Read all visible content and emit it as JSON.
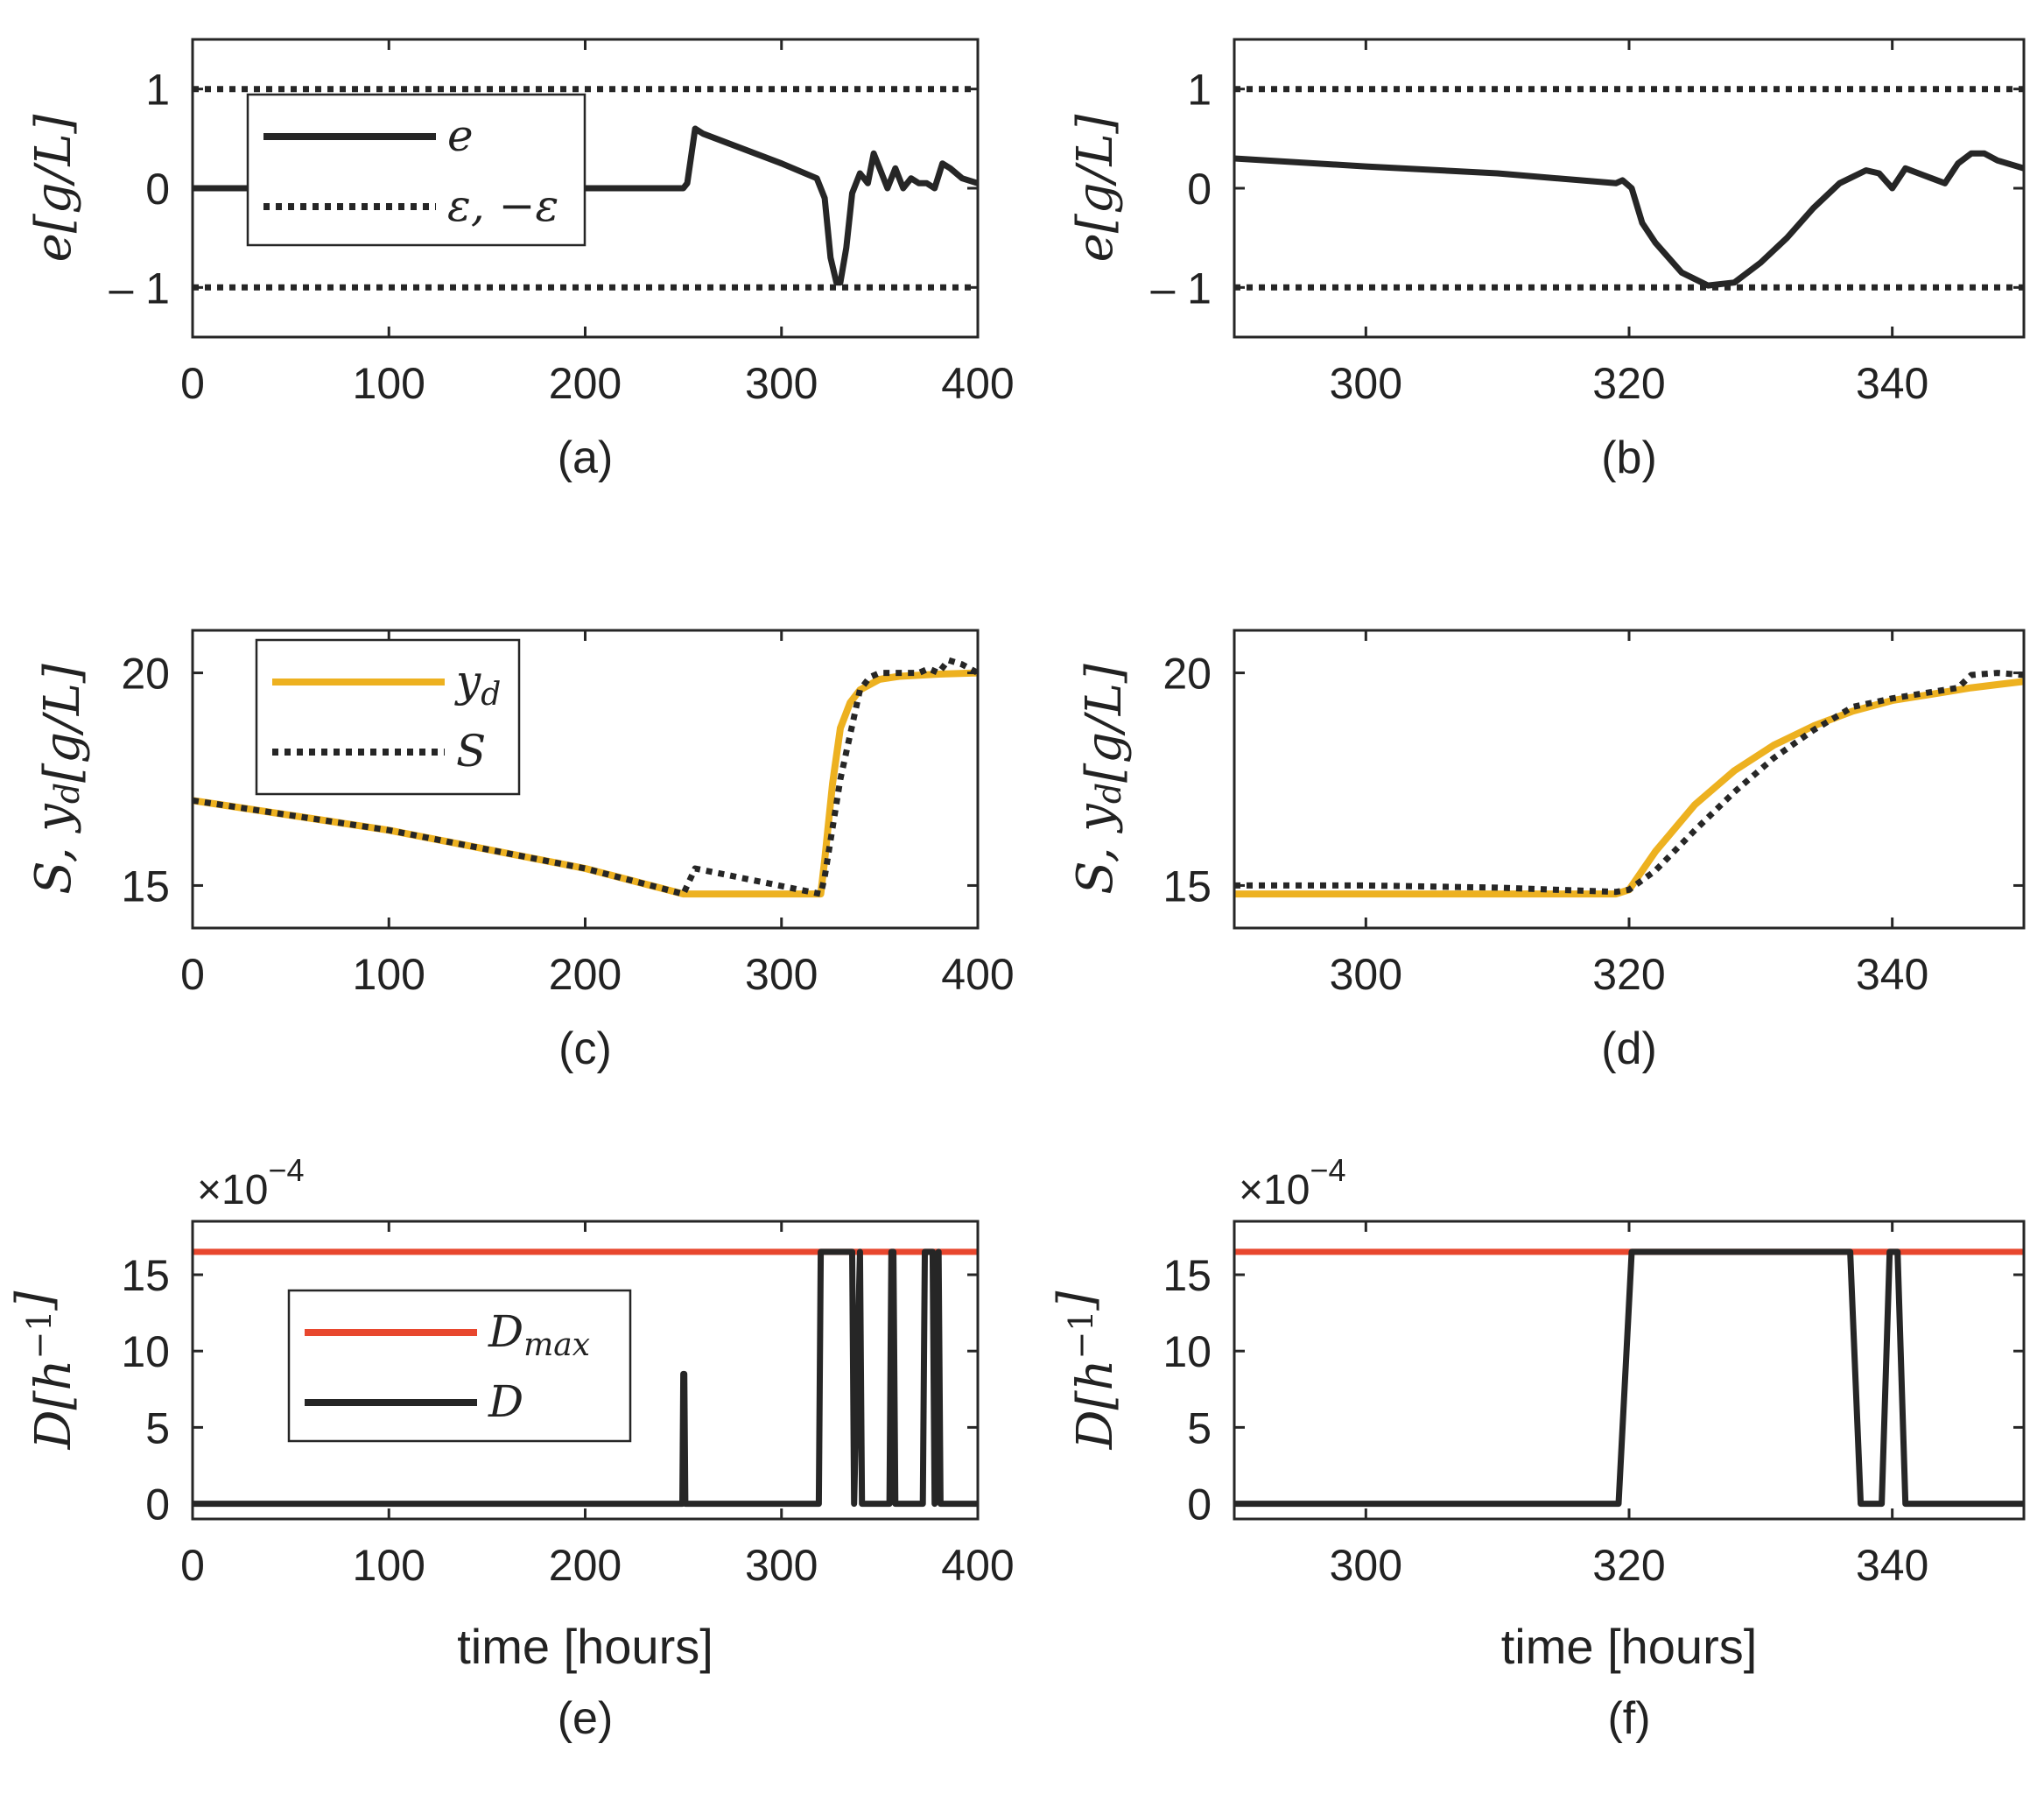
{
  "chart_data": [
    {
      "panel": "(a)",
      "type": "line",
      "xlim": [
        0,
        400
      ],
      "ylim": [
        -1.5,
        1.5
      ],
      "xticks": [
        0,
        100,
        200,
        300,
        400
      ],
      "yticks": [
        1,
        0,
        -1
      ],
      "ylabel": "e[g/L]",
      "xlabel": "",
      "legend": {
        "placement": "upper-left",
        "entries": [
          "e",
          "ε, −ε"
        ]
      },
      "series": [
        {
          "name": "e",
          "style": "solid",
          "color": "#262626",
          "x": [
            0,
            50,
            100,
            150,
            200,
            250,
            252,
            256,
            260,
            300,
            318,
            322,
            325,
            328,
            330,
            333,
            336,
            340,
            344,
            347,
            350,
            354,
            358,
            362,
            366,
            370,
            374,
            378,
            382,
            386,
            392,
            400
          ],
          "y": [
            0,
            0,
            0,
            0,
            0,
            0,
            0.05,
            0.6,
            0.55,
            0.25,
            0.1,
            -0.1,
            -0.7,
            -0.95,
            -0.95,
            -0.6,
            -0.05,
            0.15,
            0.05,
            0.35,
            0.2,
            0,
            0.2,
            0,
            0.1,
            0.05,
            0.05,
            0,
            0.25,
            0.2,
            0.1,
            0.05
          ]
        },
        {
          "name": "ε",
          "style": "dotted",
          "color": "#262626",
          "x": [
            0,
            400
          ],
          "y": [
            1,
            1
          ]
        },
        {
          "name": "−ε",
          "style": "dotted",
          "color": "#262626",
          "x": [
            0,
            400
          ],
          "y": [
            -1,
            -1
          ]
        }
      ]
    },
    {
      "panel": "(b)",
      "type": "line",
      "xlim": [
        290,
        350
      ],
      "ylim": [
        -1.5,
        1.5
      ],
      "xticks": [
        300,
        320,
        340
      ],
      "yticks": [
        1,
        0,
        -1
      ],
      "ylabel": "e[g/L]",
      "xlabel": "",
      "series": [
        {
          "name": "e",
          "style": "solid",
          "color": "#262626",
          "x": [
            290,
            300,
            310,
            319,
            319.5,
            320.2,
            321,
            322,
            324,
            326,
            328,
            330,
            332,
            334,
            336,
            338,
            339,
            340,
            341,
            342,
            343,
            344,
            345,
            346,
            347,
            348,
            350
          ],
          "y": [
            0.3,
            0.22,
            0.15,
            0.05,
            0.08,
            0,
            -0.35,
            -0.55,
            -0.85,
            -0.98,
            -0.95,
            -0.75,
            -0.5,
            -0.2,
            0.05,
            0.18,
            0.15,
            0,
            0.2,
            0.15,
            0.1,
            0.05,
            0.25,
            0.35,
            0.35,
            0.28,
            0.2
          ]
        },
        {
          "name": "ε",
          "style": "dotted",
          "color": "#262626",
          "x": [
            290,
            350
          ],
          "y": [
            1,
            1
          ]
        },
        {
          "name": "−ε",
          "style": "dotted",
          "color": "#262626",
          "x": [
            290,
            350
          ],
          "y": [
            -1,
            -1
          ]
        }
      ]
    },
    {
      "panel": "(c)",
      "type": "line",
      "xlim": [
        0,
        400
      ],
      "ylim": [
        14,
        21
      ],
      "xticks": [
        0,
        100,
        200,
        300,
        400
      ],
      "yticks": [
        20,
        15
      ],
      "ylabel": "S, y_d[g/L]",
      "xlabel": "",
      "legend": {
        "placement": "upper-left",
        "entries": [
          "y_d",
          "S"
        ]
      },
      "series": [
        {
          "name": "y_d",
          "style": "solid",
          "color": "#edb120",
          "x": [
            0,
            100,
            200,
            250,
            300,
            320,
            322,
            326,
            330,
            335,
            340,
            350,
            360,
            380,
            400
          ],
          "y": [
            17,
            16.3,
            15.4,
            14.8,
            14.8,
            14.8,
            15.6,
            17.4,
            18.7,
            19.3,
            19.6,
            19.85,
            19.92,
            19.97,
            20
          ]
        },
        {
          "name": "S",
          "style": "dotted",
          "color": "#262626",
          "x": [
            0,
            100,
            200,
            250,
            252,
            256,
            320,
            322,
            330,
            340,
            345,
            350,
            360,
            370,
            375,
            380,
            385,
            392,
            400
          ],
          "y": [
            17,
            16.3,
            15.4,
            14.8,
            15,
            15.4,
            14.8,
            15.2,
            17.5,
            19.6,
            19.9,
            20,
            20,
            20,
            20.1,
            20,
            20.3,
            20.2,
            20
          ]
        }
      ]
    },
    {
      "panel": "(d)",
      "type": "line",
      "xlim": [
        290,
        350
      ],
      "ylim": [
        14,
        21
      ],
      "xticks": [
        300,
        320,
        340
      ],
      "yticks": [
        20,
        15
      ],
      "ylabel": "S, y_d[g/L]",
      "xlabel": "",
      "series": [
        {
          "name": "y_d",
          "style": "solid",
          "color": "#edb120",
          "x": [
            290,
            300,
            310,
            319,
            320,
            322,
            325,
            328,
            331,
            334,
            337,
            340,
            343,
            346,
            350
          ],
          "y": [
            14.8,
            14.8,
            14.8,
            14.8,
            14.9,
            15.8,
            16.9,
            17.7,
            18.3,
            18.75,
            19.1,
            19.35,
            19.5,
            19.65,
            19.8
          ]
        },
        {
          "name": "S",
          "style": "dotted",
          "color": "#262626",
          "x": [
            290,
            300,
            310,
            319,
            320,
            322,
            325,
            328,
            331,
            334,
            337,
            340,
            343,
            345,
            346,
            348,
            350
          ],
          "y": [
            15,
            15,
            14.95,
            14.85,
            14.9,
            15.35,
            16.3,
            17.2,
            18,
            18.65,
            19.2,
            19.4,
            19.55,
            19.65,
            19.95,
            20,
            19.95
          ]
        }
      ]
    },
    {
      "panel": "(e)",
      "type": "line",
      "xlim": [
        0,
        400
      ],
      "ylim": [
        -1,
        18.5
      ],
      "xticks": [
        0,
        100,
        200,
        300,
        400
      ],
      "yticks": [
        15,
        10,
        5,
        0
      ],
      "xlabel": "time [hours]",
      "ylabel": "D[h^-1]",
      "scale_label": "×10^−4",
      "legend": {
        "placement": "lower-center",
        "entries": [
          "D_max",
          "D"
        ]
      },
      "series": [
        {
          "name": "D_max",
          "style": "solid",
          "color": "#e8472e",
          "x": [
            0,
            400
          ],
          "y": [
            16.5,
            16.5
          ]
        },
        {
          "name": "D",
          "style": "solid",
          "color": "#262626",
          "x": [
            0,
            249.5,
            250,
            250.5,
            251,
            319,
            320,
            336,
            337,
            340,
            341,
            355,
            356,
            357,
            358,
            372,
            373,
            377,
            378,
            380,
            381,
            400
          ],
          "y": [
            0,
            0,
            8.5,
            8.5,
            0,
            0,
            16.5,
            16.5,
            0,
            16.5,
            0,
            0,
            16.5,
            16.5,
            0,
            0,
            16.5,
            16.5,
            0,
            16.5,
            0,
            0
          ]
        }
      ]
    },
    {
      "panel": "(f)",
      "type": "line",
      "xlim": [
        290,
        350
      ],
      "ylim": [
        -1,
        18.5
      ],
      "xticks": [
        300,
        320,
        340
      ],
      "yticks": [
        15,
        10,
        5,
        0
      ],
      "xlabel": "time [hours]",
      "ylabel": "D[h^-1]",
      "scale_label": "×10^−4",
      "series": [
        {
          "name": "D_max",
          "style": "solid",
          "color": "#e8472e",
          "x": [
            290,
            350
          ],
          "y": [
            16.5,
            16.5
          ]
        },
        {
          "name": "D",
          "style": "solid",
          "color": "#262626",
          "x": [
            290,
            319.2,
            320.2,
            336.8,
            337.6,
            339.2,
            339.8,
            340.4,
            341,
            350
          ],
          "y": [
            0,
            0,
            16.5,
            16.5,
            0,
            0,
            16.5,
            16.5,
            0,
            0
          ]
        }
      ]
    }
  ]
}
